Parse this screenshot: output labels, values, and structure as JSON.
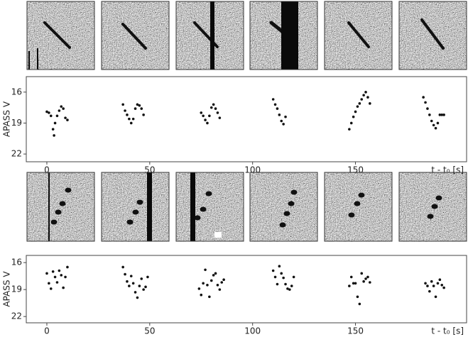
{
  "chart_data": [
    {
      "type": "scatter",
      "ylabel": "APASS V",
      "xlabel": "t - t₀ [s]",
      "color": "#111111",
      "xlim": [
        -10,
        204
      ],
      "ylim": [
        22.75,
        14.5
      ],
      "xticks": [
        0,
        50,
        100,
        150
      ],
      "yticks": [
        16,
        19,
        22
      ],
      "x": [
        0,
        1,
        2,
        3,
        3.5,
        4,
        5,
        6,
        7,
        8,
        9,
        10,
        37,
        38,
        39,
        40,
        41,
        42,
        43,
        44,
        45,
        46,
        47,
        75,
        76,
        77,
        78,
        79,
        80,
        81,
        82,
        83,
        84,
        110,
        111,
        112,
        113,
        114,
        115,
        116,
        147,
        148,
        149,
        150,
        151,
        152,
        153,
        154,
        155,
        156,
        157,
        183,
        184,
        185,
        186,
        187,
        188,
        189,
        190,
        191,
        192,
        193
      ],
      "values": [
        17.9,
        18,
        18.3,
        19.6,
        20.2,
        19,
        18.3,
        17.8,
        17.4,
        17.6,
        18.5,
        18.7,
        17.2,
        17.8,
        18.2,
        18.6,
        19,
        18.6,
        17.6,
        17.2,
        17.3,
        17.6,
        18.2,
        18,
        18.3,
        18.7,
        19,
        18.3,
        17.5,
        17.2,
        17.6,
        18,
        18.5,
        16.7,
        17.2,
        17.6,
        18.2,
        18.8,
        19.1,
        18.4,
        19.6,
        19,
        18.4,
        17.9,
        17.4,
        17.1,
        16.7,
        16.3,
        16,
        16.5,
        17.1,
        16.5,
        17,
        17.6,
        18.2,
        18.8,
        19.2,
        19.5,
        19,
        18.2,
        18.2,
        18.2
      ]
    },
    {
      "type": "scatter",
      "ylabel": "APASS V",
      "xlabel": "t - t₀ [s]",
      "color": "#111111",
      "xlim": [
        -10,
        204
      ],
      "ylim": [
        22.7,
        15.2
      ],
      "xticks": [
        0,
        50,
        100,
        150
      ],
      "yticks": [
        16,
        19,
        22
      ],
      "x": [
        0,
        1,
        2,
        3,
        4,
        5,
        6,
        7,
        8,
        9,
        10,
        37,
        38,
        39,
        40,
        41,
        42,
        43,
        44,
        45,
        46,
        47,
        48,
        49,
        74,
        75,
        76,
        77,
        78,
        79,
        80,
        81,
        82,
        83,
        84,
        85,
        86,
        110,
        111,
        112,
        113,
        114,
        115,
        116,
        117,
        118,
        119,
        120,
        147,
        148,
        149,
        150,
        151,
        152,
        153,
        154,
        155,
        156,
        157,
        184,
        185,
        186,
        187,
        188,
        189,
        190,
        191,
        192,
        193
      ],
      "values": [
        17.2,
        18.3,
        18.9,
        17,
        17.6,
        18.2,
        16.9,
        17.4,
        18.8,
        17.6,
        16.5,
        16.5,
        17.3,
        18.1,
        18.6,
        17.5,
        18.3,
        19.3,
        19.9,
        18.6,
        17.8,
        19,
        18.7,
        17.6,
        18.9,
        19.6,
        18.3,
        16.8,
        18.5,
        19.8,
        18,
        17.4,
        17.2,
        18.5,
        19,
        18.2,
        17.9,
        16.9,
        17.6,
        18.4,
        16.4,
        17.2,
        17.7,
        18.4,
        18.9,
        19,
        18.6,
        17.6,
        18.6,
        17.6,
        18.3,
        18.3,
        19.8,
        20.6,
        17.2,
        18.1,
        17.8,
        17.6,
        18.2,
        18.3,
        18.6,
        19.2,
        18.1,
        18.6,
        19.8,
        18.3,
        17.9,
        18.5,
        18.8
      ]
    }
  ]
}
